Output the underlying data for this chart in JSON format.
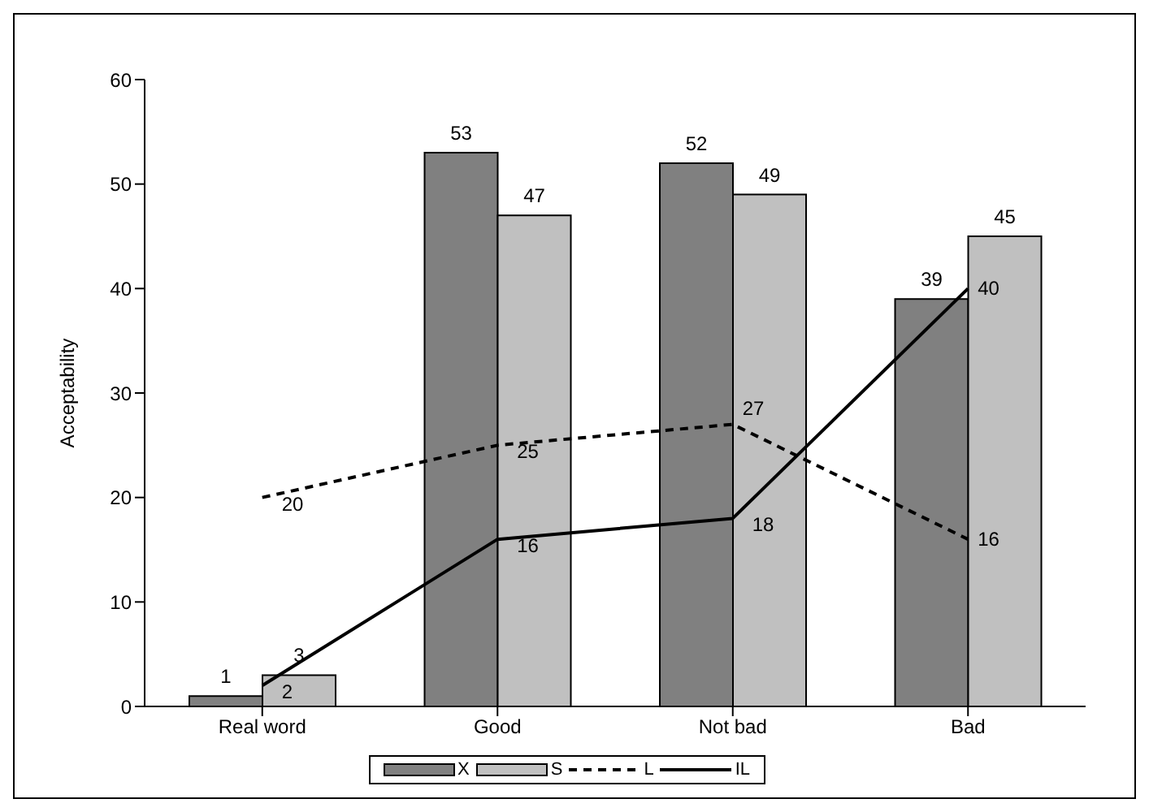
{
  "chart_data": {
    "type": "bar",
    "ylabel": "Acceptability",
    "categories": [
      "Real word",
      "Good",
      "Not bad",
      "Bad"
    ],
    "series": [
      {
        "name": "X",
        "color": "#808080",
        "values": [
          1,
          53,
          52,
          39
        ]
      },
      {
        "name": "S",
        "color": "#c0c0c0",
        "values": [
          3,
          47,
          49,
          45
        ]
      },
      {
        "name": "L",
        "type": "line",
        "color": "#000000",
        "line_style": "dashed",
        "values": [
          20,
          25,
          27,
          16
        ]
      },
      {
        "name": "IL",
        "type": "line",
        "color": "#000000",
        "line_style": "solid",
        "values": [
          2,
          16,
          18,
          40
        ]
      }
    ],
    "ylim": [
      0,
      60
    ],
    "yticks": [
      0,
      10,
      20,
      30,
      40,
      50,
      60
    ],
    "legend": "bottom",
    "data_labels": true,
    "marker": "none"
  }
}
